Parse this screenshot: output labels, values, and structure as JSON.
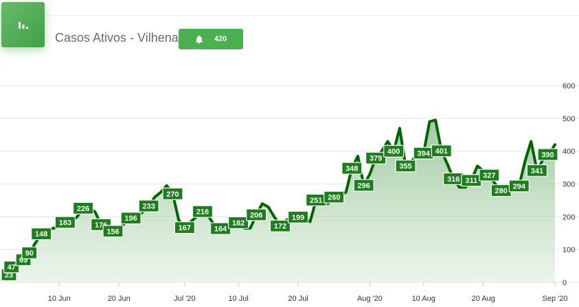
{
  "header": {
    "title": "Casos Ativos - Vilhena",
    "badge_value": "420",
    "chart_icon": "bar-chart-icon",
    "bell_icon": "bell-icon"
  },
  "colors": {
    "accent": "#4caf50",
    "line": "#006400",
    "label_bg": "#1e7e1e"
  },
  "chart_data": {
    "type": "area",
    "title": "Casos Ativos - Vilhena",
    "x_start": "2020-06-01",
    "x_end": "2020-09-01",
    "ylim": [
      0,
      600
    ],
    "y_ticks": [
      0,
      100,
      200,
      300,
      400,
      500,
      600
    ],
    "y_axis_position": "right",
    "grid": true,
    "legend": "none",
    "x_ticks": [
      {
        "date": "2020-06-10",
        "label": "10 Jun"
      },
      {
        "date": "2020-06-20",
        "label": "20 Jun"
      },
      {
        "date": "2020-07-01",
        "label": "Jul '20"
      },
      {
        "date": "2020-07-10",
        "label": "10 Jul"
      },
      {
        "date": "2020-07-20",
        "label": "20 Jul"
      },
      {
        "date": "2020-08-01",
        "label": "Aug '20"
      },
      {
        "date": "2020-08-10",
        "label": "10 Aug"
      },
      {
        "date": "2020-08-20",
        "label": "20 Aug"
      },
      {
        "date": "2020-09-01",
        "label": "Sep '20"
      }
    ],
    "series": [
      {
        "points": [
          {
            "x": "2020-06-01",
            "y": 23,
            "label": "23"
          },
          {
            "x": "2020-06-02",
            "y": 47,
            "label": "47"
          },
          {
            "x": "2020-06-03",
            "y": 50
          },
          {
            "x": "2020-06-04",
            "y": 69,
            "label": "69"
          },
          {
            "x": "2020-06-05",
            "y": 90,
            "label": "90"
          },
          {
            "x": "2020-06-06",
            "y": 120
          },
          {
            "x": "2020-06-07",
            "y": 148,
            "label": "148"
          },
          {
            "x": "2020-06-08",
            "y": 160
          },
          {
            "x": "2020-06-09",
            "y": 165
          },
          {
            "x": "2020-06-10",
            "y": 170
          },
          {
            "x": "2020-06-11",
            "y": 183,
            "label": "183"
          },
          {
            "x": "2020-06-12",
            "y": 185
          },
          {
            "x": "2020-06-13",
            "y": 200
          },
          {
            "x": "2020-06-14",
            "y": 226,
            "label": "226"
          },
          {
            "x": "2020-06-15",
            "y": 228
          },
          {
            "x": "2020-06-16",
            "y": 215
          },
          {
            "x": "2020-06-17",
            "y": 176,
            "label": "176"
          },
          {
            "x": "2020-06-18",
            "y": 155
          },
          {
            "x": "2020-06-19",
            "y": 156,
            "label": "156"
          },
          {
            "x": "2020-06-20",
            "y": 165
          },
          {
            "x": "2020-06-21",
            "y": 180
          },
          {
            "x": "2020-06-22",
            "y": 196,
            "label": "196"
          },
          {
            "x": "2020-06-23",
            "y": 200
          },
          {
            "x": "2020-06-24",
            "y": 215
          },
          {
            "x": "2020-06-25",
            "y": 233,
            "label": "233"
          },
          {
            "x": "2020-06-26",
            "y": 260
          },
          {
            "x": "2020-06-27",
            "y": 275
          },
          {
            "x": "2020-06-28",
            "y": 295
          },
          {
            "x": "2020-06-29",
            "y": 270,
            "label": "270"
          },
          {
            "x": "2020-06-30",
            "y": 190
          },
          {
            "x": "2020-07-01",
            "y": 167,
            "label": "167"
          },
          {
            "x": "2020-07-02",
            "y": 185
          },
          {
            "x": "2020-07-03",
            "y": 200
          },
          {
            "x": "2020-07-04",
            "y": 216,
            "label": "216"
          },
          {
            "x": "2020-07-05",
            "y": 200
          },
          {
            "x": "2020-07-06",
            "y": 175
          },
          {
            "x": "2020-07-07",
            "y": 164,
            "label": "164"
          },
          {
            "x": "2020-07-08",
            "y": 170
          },
          {
            "x": "2020-07-09",
            "y": 175
          },
          {
            "x": "2020-07-10",
            "y": 182,
            "label": "182"
          },
          {
            "x": "2020-07-11",
            "y": 165
          },
          {
            "x": "2020-07-12",
            "y": 165
          },
          {
            "x": "2020-07-13",
            "y": 206,
            "label": "206"
          },
          {
            "x": "2020-07-14",
            "y": 240
          },
          {
            "x": "2020-07-15",
            "y": 230
          },
          {
            "x": "2020-07-16",
            "y": 200
          },
          {
            "x": "2020-07-17",
            "y": 172,
            "label": "172"
          },
          {
            "x": "2020-07-18",
            "y": 190
          },
          {
            "x": "2020-07-19",
            "y": 195
          },
          {
            "x": "2020-07-20",
            "y": 199,
            "label": "199"
          },
          {
            "x": "2020-07-21",
            "y": 195
          },
          {
            "x": "2020-07-22",
            "y": 185
          },
          {
            "x": "2020-07-23",
            "y": 251,
            "label": "251"
          },
          {
            "x": "2020-07-24",
            "y": 245
          },
          {
            "x": "2020-07-25",
            "y": 240
          },
          {
            "x": "2020-07-26",
            "y": 260,
            "label": "260"
          },
          {
            "x": "2020-07-27",
            "y": 265
          },
          {
            "x": "2020-07-28",
            "y": 275
          },
          {
            "x": "2020-07-29",
            "y": 348,
            "label": "348"
          },
          {
            "x": "2020-07-30",
            "y": 385
          },
          {
            "x": "2020-07-31",
            "y": 296,
            "label": "296"
          },
          {
            "x": "2020-08-01",
            "y": 330
          },
          {
            "x": "2020-08-02",
            "y": 379,
            "label": "379"
          },
          {
            "x": "2020-08-03",
            "y": 400
          },
          {
            "x": "2020-08-04",
            "y": 430
          },
          {
            "x": "2020-08-05",
            "y": 400,
            "label": "400"
          },
          {
            "x": "2020-08-06",
            "y": 470
          },
          {
            "x": "2020-08-07",
            "y": 355,
            "label": "355"
          },
          {
            "x": "2020-08-08",
            "y": 370
          },
          {
            "x": "2020-08-09",
            "y": 390
          },
          {
            "x": "2020-08-10",
            "y": 394,
            "label": "394"
          },
          {
            "x": "2020-08-11",
            "y": 490
          },
          {
            "x": "2020-08-12",
            "y": 495
          },
          {
            "x": "2020-08-13",
            "y": 401,
            "label": "401"
          },
          {
            "x": "2020-08-14",
            "y": 360
          },
          {
            "x": "2020-08-15",
            "y": 316,
            "label": "316"
          },
          {
            "x": "2020-08-16",
            "y": 290
          },
          {
            "x": "2020-08-17",
            "y": 290
          },
          {
            "x": "2020-08-18",
            "y": 311,
            "label": "311"
          },
          {
            "x": "2020-08-19",
            "y": 355
          },
          {
            "x": "2020-08-20",
            "y": 340
          },
          {
            "x": "2020-08-21",
            "y": 327,
            "label": "327"
          },
          {
            "x": "2020-08-22",
            "y": 300
          },
          {
            "x": "2020-08-23",
            "y": 280,
            "label": "280"
          },
          {
            "x": "2020-08-24",
            "y": 275
          },
          {
            "x": "2020-08-25",
            "y": 280
          },
          {
            "x": "2020-08-26",
            "y": 294,
            "label": "294"
          },
          {
            "x": "2020-08-27",
            "y": 370
          },
          {
            "x": "2020-08-28",
            "y": 430
          },
          {
            "x": "2020-08-29",
            "y": 341,
            "label": "341"
          },
          {
            "x": "2020-08-30",
            "y": 375
          },
          {
            "x": "2020-08-31",
            "y": 390,
            "label": "390"
          },
          {
            "x": "2020-09-01",
            "y": 420
          }
        ]
      }
    ]
  }
}
